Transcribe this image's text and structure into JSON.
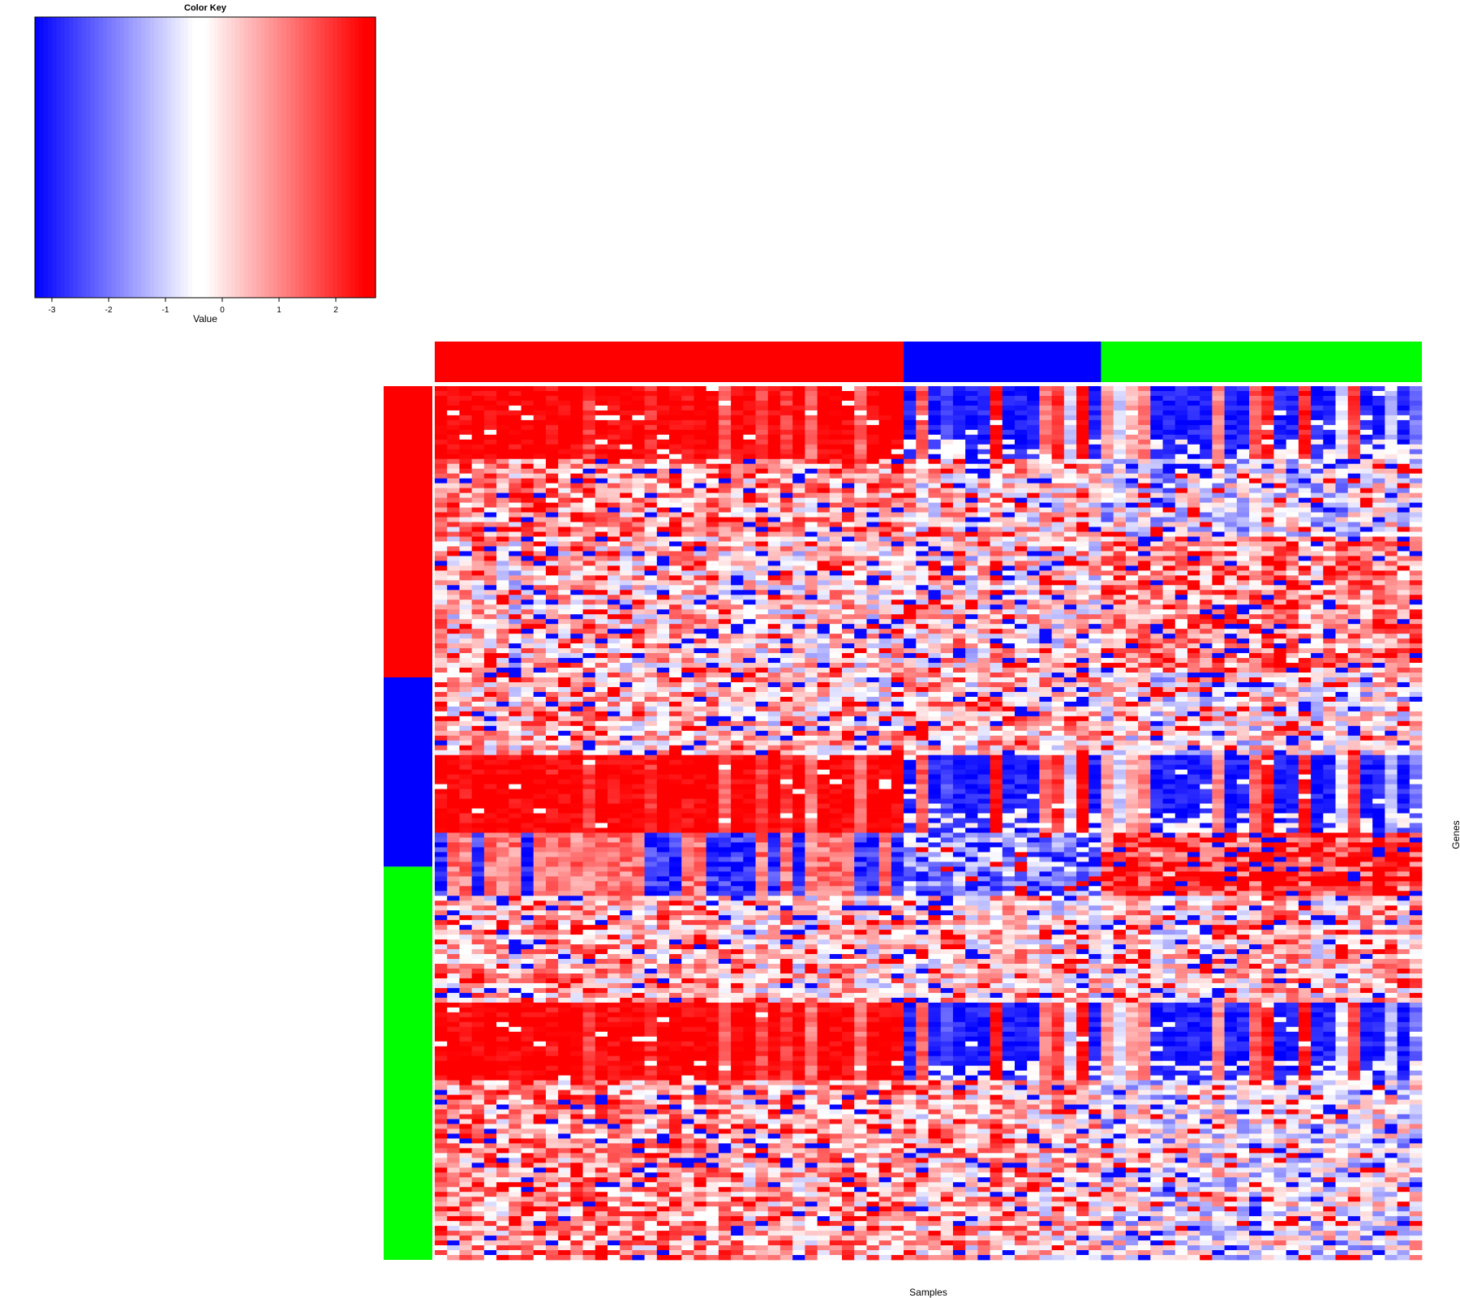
{
  "chart_data": {
    "type": "heatmap",
    "color_key": {
      "title": "Color Key",
      "xlabel": "Value",
      "range": [
        -3.3,
        2.7
      ],
      "ticks": [
        -3,
        -2,
        -1,
        0,
        1,
        2
      ],
      "tick_labels": [
        "-3",
        "-2",
        "-1",
        "0",
        "1",
        "2"
      ],
      "low_color": "#0000FF",
      "mid_color": "#FFFFFF",
      "high_color": "#FF0000",
      "mid_value": -0.3
    },
    "xlabel": "Samples",
    "ylabel": "Genes",
    "n_rows": 180,
    "seed": 12345,
    "column_groups": [
      {
        "color": "#FF0000",
        "n": 38
      },
      {
        "color": "#0000FF",
        "n": 16
      },
      {
        "color": "#00FF00",
        "n": 26
      }
    ],
    "row_groups": [
      {
        "color": "#FF0000",
        "n": 60
      },
      {
        "color": "#0000FF",
        "n": 39
      },
      {
        "color": "#00FF00",
        "n": 81
      }
    ],
    "signature_column_values": [
      2.6,
      2.6,
      2.4,
      2.6,
      2.6,
      2.6,
      2.5,
      2.6,
      2.6,
      2.3,
      2.6,
      2.6,
      1.8,
      2.6,
      2.4,
      2.6,
      2.6,
      2.0,
      2.6,
      2.6,
      2.4,
      2.6,
      2.6,
      1.4,
      2.6,
      2.6,
      1.7,
      2.6,
      1.9,
      2.6,
      1.2,
      2.6,
      2.6,
      2.5,
      1.3,
      2.6,
      2.6,
      2.6,
      -3,
      1.5,
      -3,
      -2.5,
      -3,
      -3,
      -3,
      2.5,
      -3,
      -3,
      -3,
      1.2,
      2.0,
      -1.0,
      2.5,
      -3,
      0.8,
      -1,
      0.6,
      1,
      -3,
      -3,
      -3,
      -3,
      -3,
      1,
      -3,
      -3,
      1.5,
      2.2,
      -3,
      -3,
      2.2,
      -3,
      -3,
      -0.8,
      1.8,
      -3,
      -3,
      -1.2,
      -3,
      -2
    ],
    "row_blocks": [
      {
        "start": 0,
        "end": 15,
        "kind": "signature"
      },
      {
        "start": 15,
        "end": 31,
        "kind": "mixed",
        "group_bias": [
          0.8,
          0.0,
          -0.7
        ]
      },
      {
        "start": 31,
        "end": 59,
        "kind": "mixed",
        "group_bias": [
          0.1,
          0.0,
          1.0
        ]
      },
      {
        "start": 59,
        "end": 76,
        "kind": "mixed",
        "group_bias": [
          0.3,
          0.4,
          -0.2
        ]
      },
      {
        "start": 76,
        "end": 92,
        "kind": "signature"
      },
      {
        "start": 92,
        "end": 105,
        "kind": "contrast",
        "group_bias": [
          0.0,
          -1.8,
          2.0
        ]
      },
      {
        "start": 105,
        "end": 127,
        "kind": "mixed",
        "group_bias": [
          0.3,
          0.1,
          0.3
        ]
      },
      {
        "start": 127,
        "end": 143,
        "kind": "signature"
      },
      {
        "start": 143,
        "end": 180,
        "kind": "mixed",
        "group_bias": [
          0.7,
          0.4,
          -0.5
        ]
      }
    ]
  }
}
